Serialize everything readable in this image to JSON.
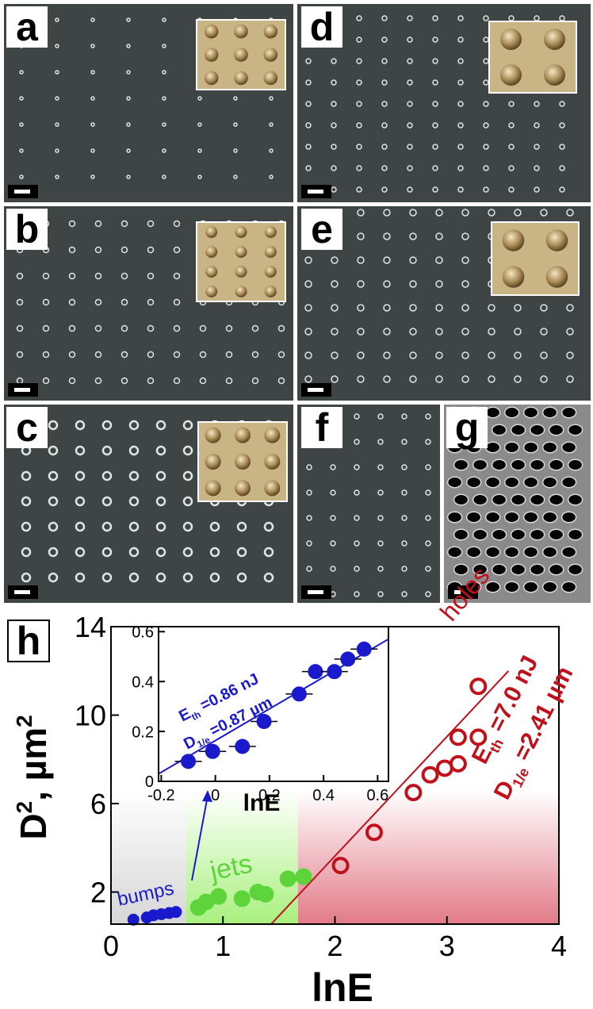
{
  "panel_labels": [
    "a",
    "b",
    "c",
    "d",
    "e",
    "f",
    "g",
    "h"
  ],
  "chart_data": [
    {
      "type": "scatter",
      "xlim": [
        0,
        4
      ],
      "ylim": [
        0.55,
        14
      ],
      "xticks": [
        0,
        1,
        2,
        3,
        4
      ],
      "yticks": [
        2,
        6,
        10,
        14
      ],
      "x_label": "lnE",
      "y_label": {
        "base": "D",
        "sup": "2",
        "unit": ", µm",
        "unit_sup": "2"
      },
      "regions": [
        {
          "x": [
            0,
            0.67
          ],
          "color": "#d6d6d6"
        },
        {
          "x": [
            0.67,
            1.67
          ],
          "color": "#a8f07e"
        },
        {
          "x": [
            1.67,
            4
          ],
          "color": "#e27a88"
        }
      ],
      "series": [
        {
          "name": "bumps",
          "color": "#1a1acc",
          "marker": "filled",
          "x": [
            0.2,
            0.32,
            0.38,
            0.45,
            0.52,
            0.58
          ],
          "values": [
            0.75,
            0.85,
            0.95,
            1.0,
            1.05,
            1.1
          ]
        },
        {
          "name": "jets",
          "color": "#5cd43a",
          "marker": "filled",
          "x": [
            0.78,
            0.85,
            0.96,
            1.17,
            1.31,
            1.38,
            1.58,
            1.72
          ],
          "values": [
            1.3,
            1.55,
            1.8,
            1.7,
            2.0,
            1.9,
            2.6,
            2.7
          ]
        },
        {
          "name": "holes",
          "color": "#c0101a",
          "marker": "open",
          "x": [
            2.05,
            2.35,
            2.7,
            2.85,
            2.98,
            3.1,
            3.1,
            3.28,
            3.28
          ],
          "values": [
            3.2,
            4.7,
            6.5,
            7.3,
            7.6,
            7.8,
            9.0,
            9.0,
            11.3
          ]
        }
      ],
      "fit": {
        "color": "#c0101a",
        "x": [
          1.43,
          3.55
        ],
        "values": [
          0.55,
          12.0
        ]
      },
      "annotations": [
        {
          "main": "E",
          "sub": "th",
          "rest": " =7.0 nJ",
          "color": "#c0101a"
        },
        {
          "main": "D",
          "sub": "1/e",
          "rest": " =2.41 µm",
          "color": "#c0101a"
        }
      ]
    },
    {
      "type": "scatter",
      "xlim": [
        -0.21,
        0.64
      ],
      "ylim": [
        0,
        0.62
      ],
      "xticks": [
        -0.2,
        0,
        0.2,
        0.4,
        0.6
      ],
      "yticks": [
        0,
        0.2,
        0.4,
        0.6
      ],
      "x_label": "lnE",
      "series": [
        {
          "color": "#1a1acc",
          "marker": "filled",
          "x": [
            -0.1,
            -0.01,
            0.1,
            0.18,
            0.31,
            0.37,
            0.44,
            0.49,
            0.55
          ],
          "values": [
            0.08,
            0.12,
            0.14,
            0.24,
            0.35,
            0.44,
            0.44,
            0.49,
            0.53
          ],
          "x_err": [
            0.05,
            0.05,
            0.05,
            0.05,
            0.05,
            0.05,
            0.05,
            0.05,
            0.05
          ]
        }
      ],
      "fit": {
        "color": "#1a1acc",
        "x": [
          -0.21,
          0.64
        ],
        "values": [
          0.03,
          0.57
        ]
      },
      "annotations": [
        {
          "main": "E",
          "sub": "th",
          "rest": " =0.86 nJ",
          "color": "#1a1acc"
        },
        {
          "main": "D",
          "sub": "1/e",
          "rest": " =0.87 µm",
          "color": "#1a1acc"
        }
      ]
    }
  ]
}
